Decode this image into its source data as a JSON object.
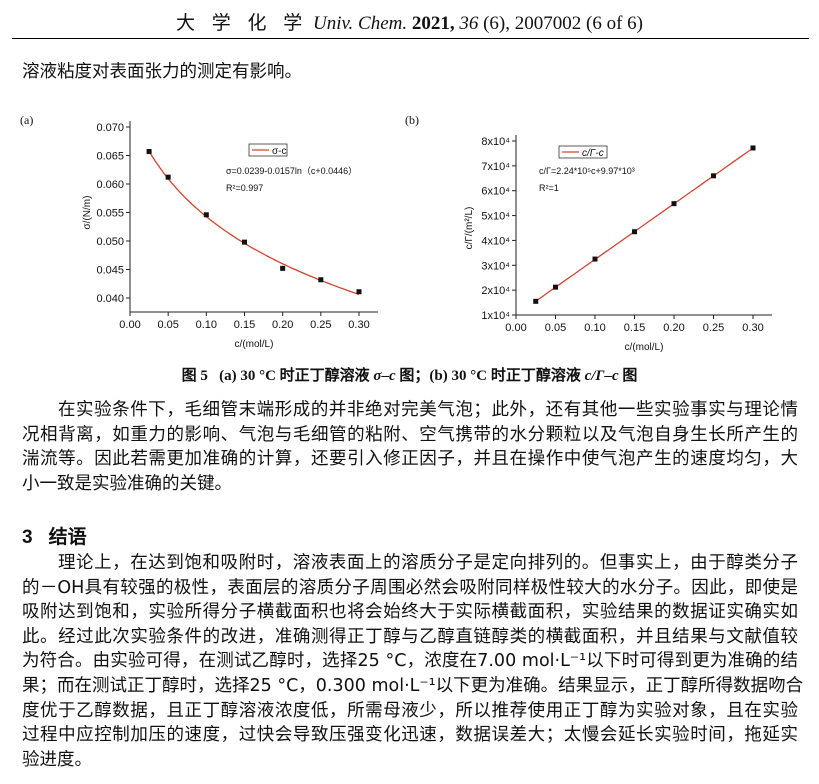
{
  "header": {
    "journal_zh": "大 学 化 学",
    "journal_en": "Univ. Chem.",
    "year": "2021,",
    "volume": "36",
    "issue_page": "(6), 2007002 (6 of 6)"
  },
  "intro_line": "溶液粘度对表面张力的测定有影响。",
  "figure_caption": {
    "label": "图 5",
    "part_a": "(a) 30 °C 时正丁醇溶液",
    "var_a": "σ–c",
    "mid": "图；(b) 30 °C 时正丁醇溶液",
    "var_b": "c/Γ–c",
    "end": "图"
  },
  "paragraph1": [
    "在实验条件下，毛细管末端形成的并非绝对完美气泡；此外，还有其他一些实验事实与理论情",
    "况相背离，如重力的影响、气泡与毛细管的粘附、空气携带的水分颗粒以及气泡自身生长所产生的",
    "湍流等。因此若需更加准确的计算，还要引入修正因子，并且在操作中使气泡产生的速度均匀，大",
    "小一致是实验准确的关键。"
  ],
  "section": {
    "number": "3",
    "title": "结语"
  },
  "paragraph2": [
    "理论上，在达到饱和吸附时，溶液表面上的溶质分子是定向排列的。但事实上，由于醇类分子",
    "的－OH具有较强的极性，表面层的溶质分子周围必然会吸附同样极性较大的水分子。因此，即使是",
    "吸附达到饱和，实验所得分子横截面积也将会始终大于实际横截面积，实验结果的数据证实确实如",
    "此。经过此次实验条件的改进，准确测得正丁醇与乙醇直链醇类的横截面积，并且结果与文献值较",
    "为符合。由实验可得，在测试乙醇时，选择25 °C，浓度在7.00 mol·L⁻¹以下时可得到更为准确的结",
    "果；而在测试正丁醇时，选择25 °C，0.300 mol·L⁻¹以下更为准确。结果显示，正丁醇所得数据吻合",
    "度优于乙醇数据，且正丁醇溶液浓度低，所需母液少，所以推荐使用正丁醇为实验对象，且在实验",
    "过程中应控制加压的速度，过快会导致压强变化迅速，数据误差大；太慢会延长实验时间，拖延实",
    "验进度。"
  ],
  "chart_data": [
    {
      "type": "scatter",
      "panel_label": "(a)",
      "x": [
        0.025,
        0.05,
        0.1,
        0.15,
        0.2,
        0.25,
        0.3
      ],
      "y": [
        0.0657,
        0.0612,
        0.0546,
        0.0498,
        0.0452,
        0.0432,
        0.0411
      ],
      "fit": "logarithmic",
      "legend": "σ-c",
      "legend_placement": "top-right",
      "equation": "σ=0.0239-0.0157ln（c+0.0446）",
      "r2": "R²=0.997",
      "xlabel": "c/(mol/L)",
      "ylabel": "σ/(N/m)",
      "xlim": [
        0,
        0.3
      ],
      "ylim": [
        0.04,
        0.07
      ],
      "xticks": [
        "0.00",
        "0.05",
        "0.10",
        "0.15",
        "0.20",
        "0.25",
        "0.30"
      ],
      "yticks": [
        "0.040",
        "0.045",
        "0.050",
        "0.055",
        "0.060",
        "0.065",
        "0.070"
      ],
      "grid": false,
      "line_color": "#d9432c",
      "marker_color": "#111111"
    },
    {
      "type": "scatter",
      "panel_label": "(b)",
      "x": [
        0.025,
        0.05,
        0.1,
        0.15,
        0.2,
        0.25,
        0.3
      ],
      "y": [
        15500,
        21200,
        32500,
        43500,
        54800,
        66000,
        77200
      ],
      "fit": "linear",
      "legend": "c/Γ-c",
      "legend_placement": "top-left",
      "equation": "c/Γ=2.24*10⁵c+9.97*10³",
      "r2": "R²=1",
      "xlabel": "c/(mol/L)",
      "ylabel": "c/Γ/(m²/L)",
      "xlim": [
        0,
        0.3
      ],
      "ylim": [
        10000,
        80000
      ],
      "xticks": [
        "0.00",
        "0.05",
        "0.10",
        "0.15",
        "0.20",
        "0.25",
        "0.30"
      ],
      "yticks": [
        "1x10⁴",
        "2x10⁴",
        "3x10⁴",
        "4x10⁴",
        "5x10⁴",
        "6x10⁴",
        "7x10⁴",
        "8x10⁴"
      ],
      "grid": false,
      "line_color": "#d9432c",
      "marker_color": "#111111"
    }
  ]
}
